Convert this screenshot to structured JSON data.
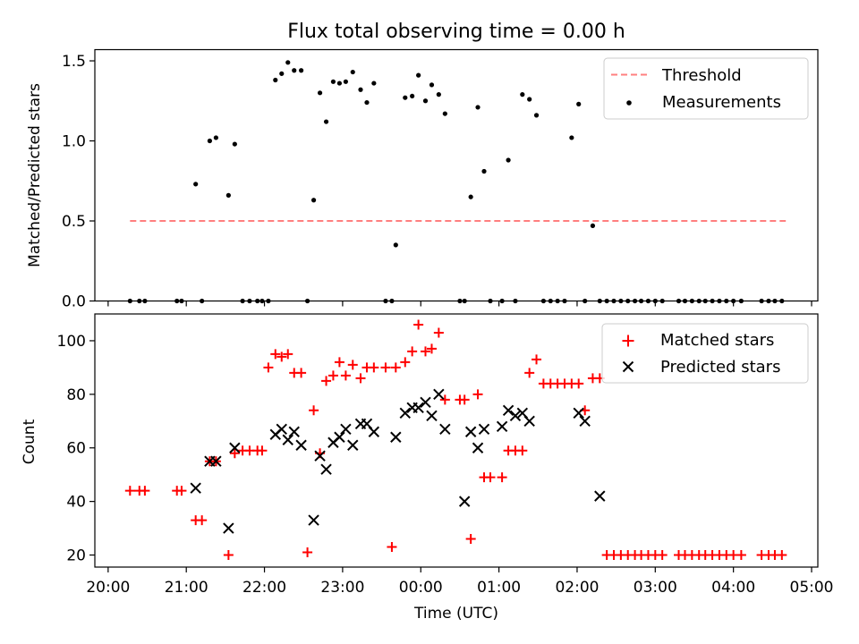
{
  "figure": {
    "title": "Flux total observing time = 0.00 h"
  },
  "chart_data": [
    {
      "type": "scatter",
      "title": "Flux total observing time = 0.00 h",
      "xlabel": "",
      "ylabel": "Matched/Predicted stars",
      "x_unit": "hours after 20:00 UTC",
      "xlim": [
        -0.17,
        9.08
      ],
      "ylim": [
        0.0,
        1.57
      ],
      "yticks": [
        0.0,
        0.5,
        1.0,
        1.5
      ],
      "ytick_labels": [
        "0.0",
        "0.5",
        "1.0",
        "1.5"
      ],
      "xticks": [
        0,
        1,
        2,
        3,
        4,
        5,
        6,
        7,
        8,
        9
      ],
      "grid": false,
      "legend": {
        "placement": "top-right",
        "entries": [
          {
            "label": "Threshold",
            "kind": "dashed-line",
            "color": "#ff7f7f"
          },
          {
            "label": "Measurements",
            "kind": "dot",
            "color": "#000000"
          }
        ]
      },
      "lines": [
        {
          "name": "Threshold",
          "x": [
            0.28,
            8.67
          ],
          "y": [
            0.5,
            0.5
          ],
          "color": "#ff7f7f",
          "style": "dashed"
        }
      ],
      "series": [
        {
          "name": "Measurements",
          "color": "#000000",
          "x": [
            0.28,
            0.4,
            0.47,
            0.88,
            0.94,
            1.12,
            1.2,
            1.3,
            1.38,
            1.54,
            1.62,
            1.72,
            1.81,
            1.91,
            1.97,
            2.05,
            2.14,
            2.22,
            2.3,
            2.38,
            2.47,
            2.55,
            2.63,
            2.71,
            2.79,
            2.88,
            2.96,
            3.04,
            3.13,
            3.23,
            3.31,
            3.4,
            3.55,
            3.63,
            3.68,
            3.8,
            3.89,
            3.97,
            4.06,
            4.14,
            4.23,
            4.31,
            4.5,
            4.56,
            4.64,
            4.73,
            4.81,
            4.89,
            5.04,
            5.12,
            5.21,
            5.3,
            5.39,
            5.48,
            5.57,
            5.66,
            5.75,
            5.84,
            5.93,
            6.02,
            6.1,
            6.2,
            6.29,
            6.38,
            6.47,
            6.56,
            6.65,
            6.74,
            6.82,
            6.91,
            7.0,
            7.09,
            7.3,
            7.38,
            7.47,
            7.56,
            7.64,
            7.73,
            7.82,
            7.91,
            8.0,
            8.1,
            8.36,
            8.45,
            8.53,
            8.62
          ],
          "y": [
            0.0,
            0.0,
            0.0,
            0.0,
            0.0,
            0.73,
            0.0,
            1.0,
            1.02,
            0.66,
            0.98,
            0.0,
            0.0,
            0.0,
            0.0,
            0.0,
            1.38,
            1.42,
            1.49,
            1.44,
            1.44,
            0.0,
            0.63,
            1.3,
            1.12,
            1.37,
            1.36,
            1.37,
            1.43,
            1.32,
            1.24,
            1.36,
            0.0,
            0.0,
            0.35,
            1.27,
            1.28,
            1.41,
            1.25,
            1.35,
            1.29,
            1.17,
            0.0,
            0.0,
            0.65,
            1.21,
            0.81,
            0.0,
            0.0,
            0.88,
            0.0,
            1.29,
            1.26,
            1.16,
            0.0,
            0.0,
            0.0,
            0.0,
            1.02,
            1.23,
            0.0,
            0.47,
            0.0,
            0.0,
            0.0,
            0.0,
            0.0,
            0.0,
            0.0,
            0.0,
            0.0,
            0.0,
            0.0,
            0.0,
            0.0,
            0.0,
            0.0,
            0.0,
            0.0,
            0.0,
            0.0,
            0.0,
            0.0,
            0.0,
            0.0,
            0.0
          ]
        }
      ]
    },
    {
      "type": "scatter",
      "title": "",
      "xlabel": "Time (UTC)",
      "ylabel": "Count",
      "x_unit": "hours after 20:00 UTC",
      "xlim": [
        -0.17,
        9.08
      ],
      "ylim": [
        15.5,
        110.0
      ],
      "yticks": [
        20,
        40,
        60,
        80,
        100
      ],
      "ytick_labels": [
        "20",
        "40",
        "60",
        "80",
        "100"
      ],
      "xticks": [
        0,
        1,
        2,
        3,
        4,
        5,
        6,
        7,
        8,
        9
      ],
      "xtick_labels": [
        "20:00",
        "21:00",
        "22:00",
        "23:00",
        "00:00",
        "01:00",
        "02:00",
        "03:00",
        "04:00",
        "05:00"
      ],
      "grid": false,
      "legend": {
        "placement": "top-right",
        "entries": [
          {
            "label": "Matched stars",
            "kind": "plus",
            "color": "#ff0000"
          },
          {
            "label": "Predicted stars",
            "kind": "x",
            "color": "#000000"
          }
        ]
      },
      "series": [
        {
          "name": "Matched stars",
          "marker": "plus",
          "color": "#ff0000",
          "x": [
            0.28,
            0.4,
            0.47,
            0.88,
            0.94,
            1.12,
            1.2,
            1.3,
            1.38,
            1.54,
            1.62,
            1.72,
            1.81,
            1.91,
            1.97,
            2.05,
            2.14,
            2.22,
            2.3,
            2.38,
            2.47,
            2.55,
            2.63,
            2.71,
            2.79,
            2.88,
            2.96,
            3.04,
            3.13,
            3.23,
            3.31,
            3.4,
            3.55,
            3.63,
            3.68,
            3.8,
            3.89,
            3.97,
            4.06,
            4.14,
            4.23,
            4.31,
            4.5,
            4.56,
            4.64,
            4.73,
            4.81,
            4.89,
            5.04,
            5.12,
            5.21,
            5.3,
            5.39,
            5.48,
            5.57,
            5.66,
            5.75,
            5.84,
            5.93,
            6.02,
            6.1,
            6.2,
            6.29,
            6.38,
            6.47,
            6.56,
            6.65,
            6.74,
            6.82,
            6.91,
            7.0,
            7.09,
            7.3,
            7.38,
            7.47,
            7.56,
            7.64,
            7.73,
            7.82,
            7.91,
            8.0,
            8.1,
            8.36,
            8.45,
            8.53,
            8.62
          ],
          "y": [
            44,
            44,
            44,
            44,
            44,
            33,
            33,
            55,
            55,
            20,
            58,
            59,
            59,
            59,
            59,
            90,
            95,
            94,
            95,
            88,
            88,
            21,
            74,
            58,
            85,
            87,
            92,
            87,
            91,
            86,
            90,
            90,
            90,
            23,
            90,
            92,
            96,
            106,
            96,
            97,
            103,
            78,
            78,
            78,
            26,
            80,
            49,
            49,
            49,
            59,
            59,
            59,
            88,
            93,
            84,
            84,
            84,
            84,
            84,
            84,
            74,
            86,
            86,
            20,
            20,
            20,
            20,
            20,
            20,
            20,
            20,
            20,
            20,
            20,
            20,
            20,
            20,
            20,
            20,
            20,
            20,
            20,
            20,
            20,
            20,
            20
          ]
        },
        {
          "name": "Predicted stars",
          "marker": "x",
          "color": "#000000",
          "x": [
            1.12,
            1.3,
            1.38,
            1.54,
            1.62,
            2.14,
            2.22,
            2.3,
            2.38,
            2.47,
            2.63,
            2.71,
            2.79,
            2.88,
            2.96,
            3.04,
            3.13,
            3.23,
            3.31,
            3.4,
            3.68,
            3.8,
            3.89,
            3.97,
            4.06,
            4.14,
            4.23,
            4.31,
            4.56,
            4.64,
            4.73,
            4.81,
            5.04,
            5.12,
            5.21,
            5.3,
            5.39,
            6.02,
            6.1,
            6.29
          ],
          "y": [
            45,
            55,
            55,
            30,
            60,
            65,
            67,
            63,
            66,
            61,
            33,
            57,
            52,
            62,
            64,
            67,
            61,
            69,
            69,
            66,
            64,
            73,
            75,
            75,
            77,
            72,
            80,
            67,
            40,
            66,
            60,
            67,
            68,
            74,
            72,
            73,
            70,
            73,
            70,
            42
          ]
        }
      ]
    }
  ]
}
